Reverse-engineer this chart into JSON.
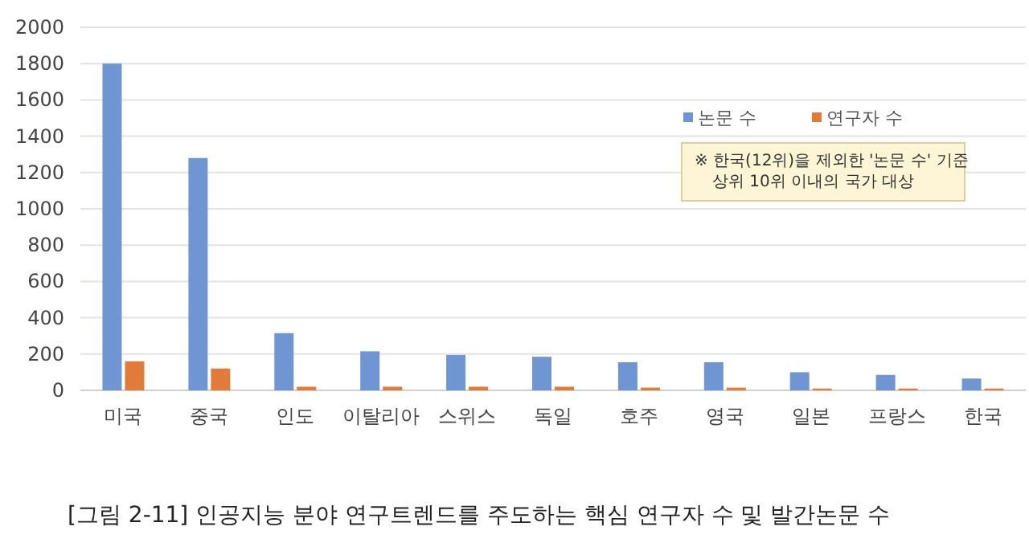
{
  "chart_data": {
    "type": "bar",
    "categories": [
      "미국",
      "중국",
      "인도",
      "이탈리아",
      "스위스",
      "독일",
      "호주",
      "영국",
      "일본",
      "프랑스",
      "한국"
    ],
    "series": [
      {
        "name": "논문 수",
        "color": "#6f96d3",
        "values": [
          1800,
          1280,
          315,
          215,
          195,
          185,
          155,
          155,
          100,
          85,
          65
        ]
      },
      {
        "name": "연구자 수",
        "color": "#e07b39",
        "values": [
          160,
          120,
          20,
          20,
          20,
          20,
          15,
          15,
          10,
          10,
          10
        ]
      }
    ],
    "ylim": [
      0,
      2000
    ],
    "yticks": [
      0,
      200,
      400,
      600,
      800,
      1000,
      1200,
      1400,
      1600,
      1800,
      2000
    ],
    "grid": "y",
    "legend": "top right",
    "annotations": [
      "※ 한국(12위)을 제외한 '논문 수' 기준\n상위 10위 이내의 국가 대상",
      "[그림 2-11] 인공지능 분야 연구트렌드를 주도하는 핵심 연구자 수 및 발간논문 수"
    ]
  }
}
